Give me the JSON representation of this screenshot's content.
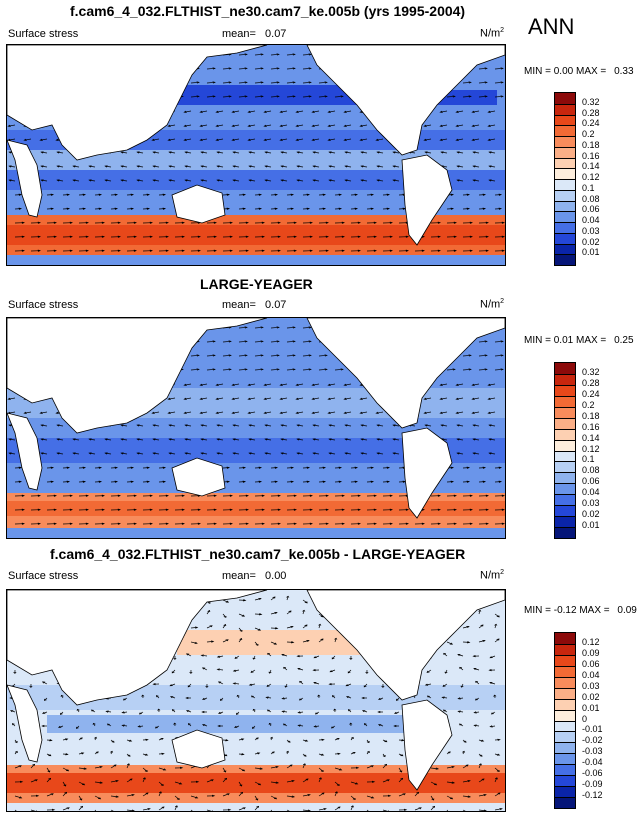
{
  "season": "ANN",
  "panels": [
    {
      "title": "f.cam6_4_032.FLTHIST_ne30.cam7_ke.005b (yrs 1995-2004)",
      "variable": "Surface stress",
      "mean_label": "mean=",
      "mean": "0.07",
      "units": "N/m",
      "units_sup": "2",
      "min_label": "MIN =",
      "min": "0.00",
      "max_label": "MAX =",
      "max": "0.33",
      "levels": [
        "0.32",
        "0.28",
        "0.24",
        "0.2",
        "0.18",
        "0.16",
        "0.14",
        "0.12",
        "0.1",
        "0.08",
        "0.06",
        "0.04",
        "0.03",
        "0.02",
        "0.01"
      ],
      "colors": [
        "#8c0a0a",
        "#c8260e",
        "#e8481a",
        "#f26a35",
        "#f88c5c",
        "#fbaf87",
        "#fdd0b2",
        "#fdeedd",
        "#dbe8f8",
        "#b7d0f4",
        "#8fb3ee",
        "#6a95ea",
        "#456fe6",
        "#2447d8",
        "#0a24a8",
        "#051578"
      ]
    },
    {
      "title": "LARGE-YEAGER",
      "variable": "Surface stress",
      "mean_label": "mean=",
      "mean": "0.07",
      "units": "N/m",
      "units_sup": "2",
      "min_label": "MIN =",
      "min": "0.01",
      "max_label": "MAX =",
      "max": "0.25",
      "levels": [
        "0.32",
        "0.28",
        "0.24",
        "0.2",
        "0.18",
        "0.16",
        "0.14",
        "0.12",
        "0.1",
        "0.08",
        "0.06",
        "0.04",
        "0.03",
        "0.02",
        "0.01"
      ],
      "colors": [
        "#8c0a0a",
        "#c8260e",
        "#e8481a",
        "#f26a35",
        "#f88c5c",
        "#fbaf87",
        "#fdd0b2",
        "#fdeedd",
        "#dbe8f8",
        "#b7d0f4",
        "#8fb3ee",
        "#6a95ea",
        "#456fe6",
        "#2447d8",
        "#0a24a8",
        "#051578"
      ]
    },
    {
      "title": "f.cam6_4_032.FLTHIST_ne30.cam7_ke.005b - LARGE-YEAGER",
      "variable": "Surface stress",
      "mean_label": "mean=",
      "mean": "0.00",
      "units": "N/m",
      "units_sup": "2",
      "min_label": "MIN =",
      "min": "-0.12",
      "max_label": "MAX =",
      "max": "0.09",
      "levels": [
        "0.12",
        "0.09",
        "0.06",
        "0.04",
        "0.03",
        "0.02",
        "0.01",
        "0",
        "-0.01",
        "-0.02",
        "-0.03",
        "-0.04",
        "-0.06",
        "-0.09",
        "-0.12"
      ],
      "colors": [
        "#8c0a0a",
        "#c8260e",
        "#e8481a",
        "#f26a35",
        "#f88c5c",
        "#fbaf87",
        "#fdd0b2",
        "#fdeedd",
        "#dbe8f8",
        "#b7d0f4",
        "#8fb3ee",
        "#6a95ea",
        "#456fe6",
        "#2447d8",
        "#0a24a8",
        "#051578"
      ]
    }
  ]
}
